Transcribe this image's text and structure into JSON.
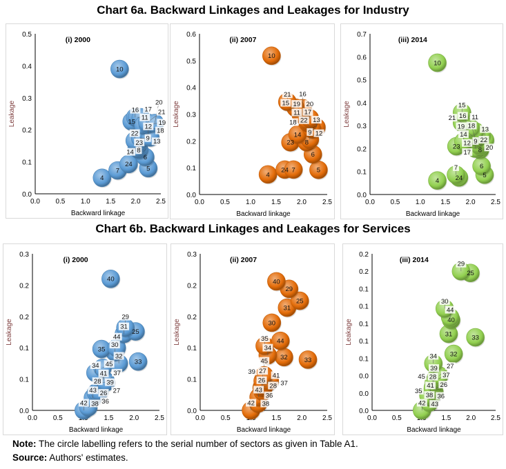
{
  "titles": {
    "industry": "Chart 6a. Backward Linkages and Leakages for Industry",
    "services": "Chart 6b. Backward Linkages and Leakages for Services"
  },
  "note": {
    "label": "Note:",
    "text": " The circle labelling refers to the serial number of sectors as given in Table A1."
  },
  "source": {
    "label": "Source:",
    "text": " Authors' estimates."
  },
  "colors": {
    "2000": "#5b9bd5",
    "2007": "#e36c09",
    "2014": "#92d050"
  },
  "chart_data": [
    {
      "type": "scatter",
      "title": "(i) 2000",
      "xlabel": "Backward linkage",
      "ylabel": "Leakage",
      "color_key": "2000",
      "xlim": [
        0,
        2.5
      ],
      "xticks": [
        0,
        0.5,
        1,
        1.5,
        2,
        2.5
      ],
      "xtick_labels": [
        "0.0",
        "0.5",
        "1.0",
        "1.5",
        "2.0",
        "2.5"
      ],
      "ylim": [
        0,
        0.5
      ],
      "yticks": [
        0,
        0.1,
        0.2,
        0.3,
        0.4,
        0.5
      ],
      "ytick_labels": [
        "0.0",
        "0.1",
        "0.2",
        "0.3",
        "0.4",
        "0.5"
      ],
      "points": [
        {
          "label": "4",
          "x": 1.33,
          "y": 0.05
        },
        {
          "label": "7",
          "x": 1.64,
          "y": 0.073
        },
        {
          "label": "24",
          "x": 1.86,
          "y": 0.093
        },
        {
          "label": "5",
          "x": 2.25,
          "y": 0.08
        },
        {
          "label": "6",
          "x": 2.19,
          "y": 0.115
        },
        {
          "label": "23",
          "x": 2.07,
          "y": 0.137
        },
        {
          "label": "14",
          "x": 2.02,
          "y": 0.143
        },
        {
          "label": "8",
          "x": 2.06,
          "y": 0.16
        },
        {
          "label": "22",
          "x": 1.98,
          "y": 0.166
        },
        {
          "label": "9",
          "x": 2.09,
          "y": 0.174
        },
        {
          "label": "12",
          "x": 2.25,
          "y": 0.187
        },
        {
          "label": "13",
          "x": 2.29,
          "y": 0.176
        },
        {
          "label": "15",
          "x": 1.92,
          "y": 0.226
        },
        {
          "label": "16",
          "x": 1.99,
          "y": 0.239
        },
        {
          "label": "11",
          "x": 2.03,
          "y": 0.239
        },
        {
          "label": "17",
          "x": 2.1,
          "y": 0.239
        },
        {
          "label": "18",
          "x": 2.15,
          "y": 0.214
        },
        {
          "label": "19",
          "x": 2.24,
          "y": 0.216
        },
        {
          "label": "21",
          "x": 2.23,
          "y": 0.223
        },
        {
          "label": "20",
          "x": 2.38,
          "y": 0.221
        },
        {
          "label": "10",
          "x": 1.68,
          "y": 0.39
        }
      ]
    },
    {
      "type": "scatter",
      "title": "(ii) 2007",
      "xlabel": "Backward linkage",
      "ylabel": "Leakage",
      "color_key": "2007",
      "xlim": [
        0,
        2.5
      ],
      "xticks": [
        0,
        0.5,
        1,
        1.5,
        2,
        2.5
      ],
      "xtick_labels": [
        "0.0",
        "0.5",
        "1.0",
        "1.5",
        "2.0",
        "2.5"
      ],
      "ylim": [
        0,
        0.6
      ],
      "yticks": [
        0,
        0.1,
        0.2,
        0.3,
        0.4,
        0.5,
        0.6
      ],
      "ytick_labels": [
        "0.0",
        "0.1",
        "0.2",
        "0.3",
        "0.4",
        "0.5",
        "0.6"
      ],
      "points": [
        {
          "label": "4",
          "x": 1.34,
          "y": 0.075
        },
        {
          "label": "24",
          "x": 1.67,
          "y": 0.093
        },
        {
          "label": "7",
          "x": 1.84,
          "y": 0.093
        },
        {
          "label": "5",
          "x": 2.33,
          "y": 0.092
        },
        {
          "label": "6",
          "x": 2.22,
          "y": 0.15
        },
        {
          "label": "23",
          "x": 1.78,
          "y": 0.195
        },
        {
          "label": "8",
          "x": 2.1,
          "y": 0.195
        },
        {
          "label": "9",
          "x": 2.16,
          "y": 0.205
        },
        {
          "label": "14",
          "x": 1.92,
          "y": 0.224
        },
        {
          "label": "13",
          "x": 2.29,
          "y": 0.251
        },
        {
          "label": "12",
          "x": 2.21,
          "y": 0.243
        },
        {
          "label": "22",
          "x": 2.19,
          "y": 0.247
        },
        {
          "label": "17",
          "x": 2.12,
          "y": 0.267
        },
        {
          "label": "11",
          "x": 2.12,
          "y": 0.271
        },
        {
          "label": "18",
          "x": 2.11,
          "y": 0.278
        },
        {
          "label": "20",
          "x": 2.16,
          "y": 0.284
        },
        {
          "label": "19",
          "x": 1.98,
          "y": 0.3
        },
        {
          "label": "16",
          "x": 2.02,
          "y": 0.322
        },
        {
          "label": "15",
          "x": 1.88,
          "y": 0.324
        },
        {
          "label": "21",
          "x": 1.72,
          "y": 0.346
        },
        {
          "label": "10",
          "x": 1.41,
          "y": 0.518
        }
      ]
    },
    {
      "type": "scatter",
      "title": "(iii) 2014",
      "xlabel": "Backward linkage",
      "ylabel": "Leakage",
      "color_key": "2014",
      "xlim": [
        0,
        2.5
      ],
      "xticks": [
        0,
        0.5,
        1,
        1.5,
        2,
        2.5
      ],
      "xtick_labels": [
        "0.0",
        "0.5",
        "1.0",
        "1.5",
        "2.0",
        "2.5"
      ],
      "ylim": [
        0,
        0.7
      ],
      "yticks": [
        0,
        0.1,
        0.2,
        0.3,
        0.4,
        0.5,
        0.6,
        0.7
      ],
      "ytick_labels": [
        "0.0",
        "0.1",
        "0.2",
        "0.3",
        "0.4",
        "0.5",
        "0.6",
        "0.7"
      ],
      "points": [
        {
          "label": "4",
          "x": 1.34,
          "y": 0.061
        },
        {
          "label": "24",
          "x": 1.77,
          "y": 0.074
        },
        {
          "label": "7",
          "x": 1.71,
          "y": 0.086
        },
        {
          "label": "5",
          "x": 2.28,
          "y": 0.086
        },
        {
          "label": "6",
          "x": 2.22,
          "y": 0.124
        },
        {
          "label": "8",
          "x": 2.19,
          "y": 0.195
        },
        {
          "label": "9",
          "x": 2.1,
          "y": 0.2
        },
        {
          "label": "22",
          "x": 2.19,
          "y": 0.21
        },
        {
          "label": "23",
          "x": 1.72,
          "y": 0.21
        },
        {
          "label": "12",
          "x": 2.15,
          "y": 0.22
        },
        {
          "label": "14",
          "x": 1.86,
          "y": 0.23
        },
        {
          "label": "13",
          "x": 2.29,
          "y": 0.237
        },
        {
          "label": "18",
          "x": 2.1,
          "y": 0.24
        },
        {
          "label": "17",
          "x": 2.13,
          "y": 0.25
        },
        {
          "label": "19",
          "x": 2.03,
          "y": 0.256
        },
        {
          "label": "20",
          "x": 2.22,
          "y": 0.258
        },
        {
          "label": "11",
          "x": 2.09,
          "y": 0.275
        },
        {
          "label": "16",
          "x": 2.0,
          "y": 0.29
        },
        {
          "label": "21",
          "x": 1.83,
          "y": 0.313
        },
        {
          "label": "15",
          "x": 1.83,
          "y": 0.357
        },
        {
          "label": "10",
          "x": 1.34,
          "y": 0.574
        }
      ]
    },
    {
      "type": "scatter",
      "title": "(i) 2000",
      "xlabel": "Backward linkage",
      "ylabel": "Leakage",
      "color_key": "2000",
      "xlim": [
        0,
        2.5
      ],
      "xticks": [
        0,
        0.5,
        1,
        1.5,
        2,
        2.5
      ],
      "xtick_labels": [
        "0.0",
        "0.5",
        "1.0",
        "1.5",
        "2.0",
        "2.5"
      ],
      "ylim": [
        0,
        0.25
      ],
      "yticks": [
        0,
        0.05,
        0.1,
        0.15,
        0.2,
        0.25
      ],
      "ytick_labels": [
        "0.0",
        "0.1",
        "0.1",
        "0.2",
        "0.2",
        "0.3"
      ],
      "points": [
        {
          "label": "42",
          "x": 1.01,
          "y": 0.0
        },
        {
          "label": "38",
          "x": 1.1,
          "y": 0.005
        },
        {
          "label": "43",
          "x": 1.19,
          "y": 0.02
        },
        {
          "label": "26",
          "x": 1.25,
          "y": 0.028
        },
        {
          "label": "28",
          "x": 1.28,
          "y": 0.029
        },
        {
          "label": "36",
          "x": 1.32,
          "y": 0.03
        },
        {
          "label": "39",
          "x": 1.38,
          "y": 0.045
        },
        {
          "label": "41",
          "x": 1.4,
          "y": 0.047
        },
        {
          "label": "27",
          "x": 1.44,
          "y": 0.047
        },
        {
          "label": "37",
          "x": 1.45,
          "y": 0.045
        },
        {
          "label": "34",
          "x": 1.24,
          "y": 0.06
        },
        {
          "label": "45",
          "x": 1.38,
          "y": 0.068
        },
        {
          "label": "32",
          "x": 1.7,
          "y": 0.075
        },
        {
          "label": "33",
          "x": 2.08,
          "y": 0.078
        },
        {
          "label": "30",
          "x": 1.62,
          "y": 0.093
        },
        {
          "label": "35",
          "x": 1.36,
          "y": 0.098
        },
        {
          "label": "44",
          "x": 1.66,
          "y": 0.1
        },
        {
          "label": "31",
          "x": 1.8,
          "y": 0.122
        },
        {
          "label": "25",
          "x": 2.03,
          "y": 0.126
        },
        {
          "label": "29",
          "x": 1.83,
          "y": 0.132
        },
        {
          "label": "40",
          "x": 1.54,
          "y": 0.21
        }
      ]
    },
    {
      "type": "scatter",
      "title": "(ii) 2007",
      "xlabel": "Backward linkage",
      "ylabel": "Leakage",
      "color_key": "2007",
      "xlim": [
        0,
        2.5
      ],
      "xticks": [
        0,
        0.5,
        1,
        1.5,
        2,
        2.5
      ],
      "xtick_labels": [
        "0.0",
        "0.5",
        "1.0",
        "1.5",
        "2.0",
        "2.5"
      ],
      "ylim": [
        0,
        0.25
      ],
      "yticks": [
        0,
        0.05,
        0.1,
        0.15,
        0.2,
        0.25
      ],
      "ytick_labels": [
        "0.0",
        "0.1",
        "0.1",
        "0.2",
        "0.2",
        "0.3"
      ],
      "points": [
        {
          "label": "42",
          "x": 1.0,
          "y": 0.0
        },
        {
          "label": "38",
          "x": 1.14,
          "y": 0.011
        },
        {
          "label": "43",
          "x": 1.15,
          "y": 0.021
        },
        {
          "label": "36",
          "x": 1.23,
          "y": 0.03
        },
        {
          "label": "26",
          "x": 1.21,
          "y": 0.036
        },
        {
          "label": "28",
          "x": 1.22,
          "y": 0.038
        },
        {
          "label": "27",
          "x": 1.23,
          "y": 0.04
        },
        {
          "label": "41",
          "x": 1.28,
          "y": 0.041
        },
        {
          "label": "39",
          "x": 1.23,
          "y": 0.047
        },
        {
          "label": "37",
          "x": 1.37,
          "y": 0.047
        },
        {
          "label": "45",
          "x": 1.26,
          "y": 0.056
        },
        {
          "label": "33",
          "x": 2.12,
          "y": 0.081
        },
        {
          "label": "32",
          "x": 1.65,
          "y": 0.085
        },
        {
          "label": "34",
          "x": 1.33,
          "y": 0.088
        },
        {
          "label": "35",
          "x": 1.27,
          "y": 0.103
        },
        {
          "label": "44",
          "x": 1.58,
          "y": 0.111
        },
        {
          "label": "30",
          "x": 1.41,
          "y": 0.14
        },
        {
          "label": "31",
          "x": 1.71,
          "y": 0.164
        },
        {
          "label": "25",
          "x": 1.96,
          "y": 0.175
        },
        {
          "label": "29",
          "x": 1.75,
          "y": 0.194
        },
        {
          "label": "40",
          "x": 1.5,
          "y": 0.206
        }
      ]
    },
    {
      "type": "scatter",
      "title": "(iii) 2014",
      "xlabel": "Backward linkage",
      "ylabel": "Leakage",
      "color_key": "2014",
      "xlim": [
        0,
        2.5
      ],
      "xticks": [
        0,
        0.5,
        1,
        1.5,
        2,
        2.5
      ],
      "xtick_labels": [
        "0.0",
        "0.5",
        "1.0",
        "1.5",
        "2.0",
        "2.5"
      ],
      "ylim": [
        0,
        0.18
      ],
      "yticks": [
        0,
        0.02,
        0.04,
        0.06,
        0.08,
        0.1,
        0.12,
        0.14,
        0.16,
        0.18
      ],
      "ytick_labels": [
        "0.0",
        "0.0",
        "0.0",
        "0.1",
        "0.1",
        "0.1",
        "0.1",
        "0.1",
        "0.2",
        "0.2"
      ],
      "points": [
        {
          "label": "42",
          "x": 1.01,
          "y": 0.0
        },
        {
          "label": "38",
          "x": 1.16,
          "y": 0.009
        },
        {
          "label": "43",
          "x": 1.19,
          "y": 0.015
        },
        {
          "label": "41",
          "x": 1.18,
          "y": 0.016
        },
        {
          "label": "35",
          "x": 1.14,
          "y": 0.017
        },
        {
          "label": "36",
          "x": 1.26,
          "y": 0.021
        },
        {
          "label": "26",
          "x": 1.25,
          "y": 0.024
        },
        {
          "label": "28",
          "x": 1.23,
          "y": 0.026
        },
        {
          "label": "39",
          "x": 1.25,
          "y": 0.032
        },
        {
          "label": "37",
          "x": 1.3,
          "y": 0.035
        },
        {
          "label": "45",
          "x": 1.29,
          "y": 0.037
        },
        {
          "label": "27",
          "x": 1.36,
          "y": 0.04
        },
        {
          "label": "34",
          "x": 1.24,
          "y": 0.054
        },
        {
          "label": "32",
          "x": 1.65,
          "y": 0.065
        },
        {
          "label": "33",
          "x": 2.09,
          "y": 0.084
        },
        {
          "label": "31",
          "x": 1.55,
          "y": 0.088
        },
        {
          "label": "40",
          "x": 1.6,
          "y": 0.104
        },
        {
          "label": "44",
          "x": 1.58,
          "y": 0.107
        },
        {
          "label": "30",
          "x": 1.47,
          "y": 0.117
        },
        {
          "label": "25",
          "x": 1.99,
          "y": 0.158
        },
        {
          "label": "29",
          "x": 1.8,
          "y": 0.16
        }
      ]
    }
  ]
}
